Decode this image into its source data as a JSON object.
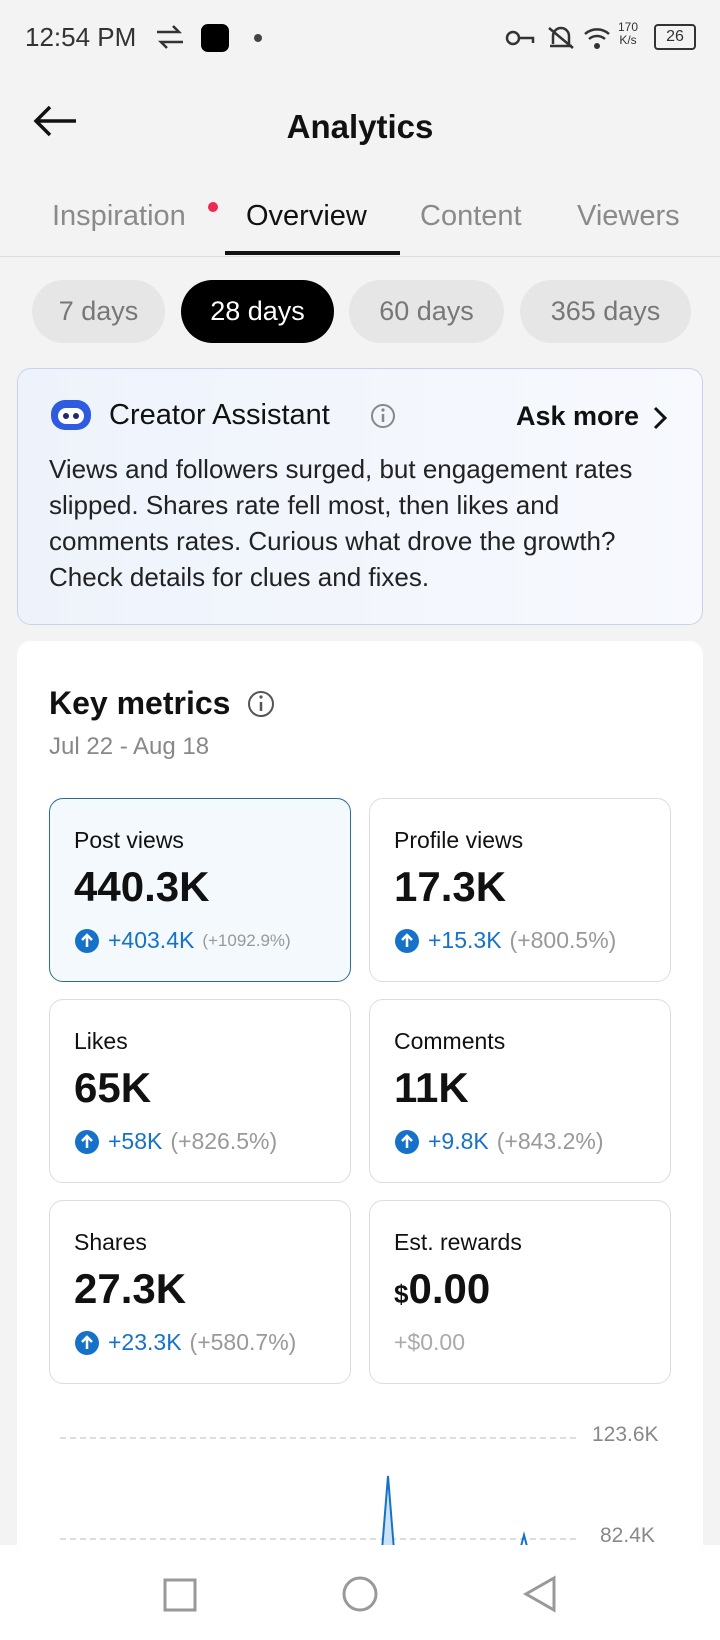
{
  "status_bar": {
    "time": "12:54 PM",
    "speed": "170",
    "speed_unit": "K/s",
    "battery": "26"
  },
  "header": {
    "title": "Analytics"
  },
  "tabs": [
    "Inspiration",
    "Overview",
    "Content",
    "Viewers"
  ],
  "ranges": [
    "7 days",
    "28 days",
    "60 days",
    "365 days"
  ],
  "assistant": {
    "title": "Creator Assistant",
    "action": "Ask more",
    "text": "Views and followers surged, but engagement rates slipped. Shares rate fell most, then likes and comments rates. Curious what drove the growth? Check details for clues and fixes."
  },
  "key_metrics": {
    "title": "Key metrics",
    "date_range": "Jul 22 - Aug 18",
    "metrics": [
      {
        "label": "Post views",
        "value": "440.3K",
        "change": "+403.4K",
        "percent": "(+1092.9%)"
      },
      {
        "label": "Profile views",
        "value": "17.3K",
        "change": "+15.3K",
        "percent": "(+800.5%)"
      },
      {
        "label": "Likes",
        "value": "65K",
        "change": "+58K",
        "percent": "(+826.5%)"
      },
      {
        "label": "Comments",
        "value": "11K",
        "change": "+9.8K",
        "percent": "(+843.2%)"
      },
      {
        "label": "Shares",
        "value": "27.3K",
        "change": "+23.3K",
        "percent": "(+580.7%)"
      },
      {
        "label": "Est. rewards",
        "currency": "$",
        "value": "0.00",
        "change": "+$0.00"
      }
    ]
  },
  "chart": {
    "yticks": [
      "123.6K",
      "82.4K"
    ]
  }
}
